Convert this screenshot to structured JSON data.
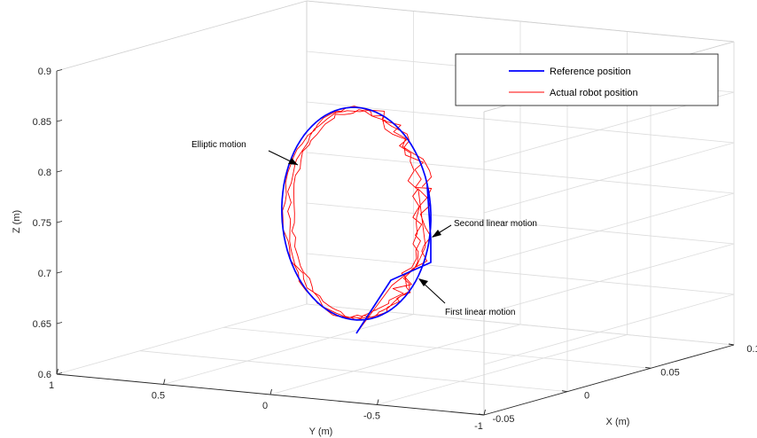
{
  "chart_data": {
    "type": "line",
    "title": "",
    "xlabel": "X (m)",
    "ylabel": "Y (m)",
    "zlabel": "Z (m)",
    "xlim": [
      -0.05,
      0.1
    ],
    "ylim": [
      -1,
      1
    ],
    "zlim": [
      0.6,
      0.9
    ],
    "x_ticks": [
      "-0.05",
      "0",
      "0.05",
      "0.1"
    ],
    "y_ticks": [
      "1",
      "0.5",
      "0",
      "-0.5",
      "-1"
    ],
    "z_ticks": [
      "0.6",
      "0.65",
      "0.7",
      "0.75",
      "0.8",
      "0.85",
      "0.9"
    ],
    "grid": true,
    "legend_position": "top-right",
    "series": [
      {
        "name": "Reference position",
        "color": "#0000ff"
      },
      {
        "name": "Actual robot position",
        "color": "#ff0000"
      }
    ],
    "annotations": [
      {
        "text": "Elliptic motion"
      },
      {
        "text": "Second linear motion"
      },
      {
        "text": "First linear motion"
      }
    ]
  }
}
